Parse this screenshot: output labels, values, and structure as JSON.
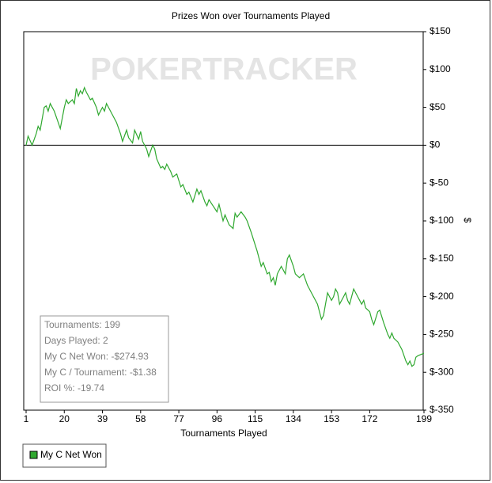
{
  "chart_data": {
    "type": "line",
    "title": "Prizes Won over Tournaments Played",
    "x_label": "Tournaments Played",
    "y_label": "$",
    "watermark": "POKERTRACKER",
    "xlim": [
      1,
      199
    ],
    "xticks": [
      1,
      20,
      39,
      58,
      77,
      96,
      115,
      134,
      153,
      172,
      199
    ],
    "ylim": [
      -350,
      150
    ],
    "yticks": [
      {
        "value": 150,
        "label": "$150"
      },
      {
        "value": 100,
        "label": "$100"
      },
      {
        "value": 50,
        "label": "$50"
      },
      {
        "value": 0,
        "label": "$0"
      },
      {
        "value": -50,
        "label": "$-50"
      },
      {
        "value": -100,
        "label": "$-100"
      },
      {
        "value": -150,
        "label": "$-150"
      },
      {
        "value": -200,
        "label": "$-200"
      },
      {
        "value": -250,
        "label": "$-250"
      },
      {
        "value": -300,
        "label": "$-300"
      },
      {
        "value": -350,
        "label": "$-350"
      }
    ],
    "zero_line": true,
    "legend": "bottom-left",
    "x": [
      1,
      2,
      4,
      6,
      7,
      8,
      10,
      11,
      12,
      13,
      15,
      17,
      18,
      20,
      21,
      22,
      24,
      25,
      26,
      27,
      28,
      29,
      30,
      31,
      33,
      34,
      36,
      37,
      38,
      39,
      40,
      41,
      43,
      46,
      48,
      49,
      51,
      52,
      54,
      55,
      57,
      58,
      59,
      61,
      62,
      64,
      65,
      66,
      68,
      69,
      70,
      71,
      73,
      74,
      76,
      78,
      79,
      81,
      82,
      84,
      86,
      87,
      88,
      90,
      91,
      92,
      94,
      96,
      97,
      99,
      100,
      102,
      104,
      105,
      106,
      108,
      110,
      111,
      113,
      116,
      118,
      119,
      121,
      122,
      123,
      124,
      125,
      126,
      127,
      128,
      130,
      131,
      132,
      134,
      135,
      137,
      139,
      141,
      142,
      144,
      146,
      148,
      149,
      150,
      151,
      152,
      153,
      154,
      155,
      156,
      157,
      159,
      160,
      161,
      162,
      164,
      166,
      168,
      169,
      170,
      172,
      173,
      174,
      176,
      177,
      179,
      181,
      182,
      183,
      184,
      186,
      188,
      190,
      191,
      192,
      193,
      194,
      195,
      196,
      199
    ],
    "series": [
      {
        "name": "My C Net Won",
        "color": "#2fa82f",
        "values": [
          0,
          12,
          0,
          15,
          25,
          20,
          50,
          52,
          45,
          55,
          45,
          30,
          22,
          50,
          60,
          55,
          60,
          55,
          75,
          65,
          72,
          68,
          76,
          70,
          60,
          62,
          50,
          40,
          45,
          50,
          45,
          55,
          45,
          30,
          15,
          5,
          20,
          10,
          3,
          20,
          8,
          18,
          5,
          -5,
          -15,
          0,
          -5,
          -18,
          -30,
          -28,
          -32,
          -25,
          -35,
          -42,
          -38,
          -55,
          -52,
          -65,
          -62,
          -75,
          -58,
          -65,
          -60,
          -75,
          -80,
          -72,
          -80,
          -88,
          -78,
          -100,
          -92,
          -105,
          -110,
          -90,
          -95,
          -88,
          -95,
          -100,
          -115,
          -140,
          -160,
          -155,
          -170,
          -168,
          -180,
          -175,
          -185,
          -170,
          -165,
          -160,
          -170,
          -150,
          -145,
          -160,
          -170,
          -175,
          -170,
          -185,
          -190,
          -200,
          -210,
          -230,
          -225,
          -210,
          -195,
          -200,
          -205,
          -200,
          -190,
          -195,
          -210,
          -200,
          -195,
          -205,
          -210,
          -190,
          -200,
          -210,
          -205,
          -215,
          -220,
          -230,
          -237,
          -220,
          -218,
          -235,
          -250,
          -255,
          -248,
          -255,
          -260,
          -270,
          -285,
          -290,
          -285,
          -292,
          -290,
          -280,
          -278,
          -274.93
        ]
      }
    ],
    "stats": [
      "Tournaments: 199",
      "Days Played: 2",
      "My C Net Won: -$274.93",
      "My C / Tournament: -$1.38",
      "ROI %: -19.74"
    ]
  }
}
